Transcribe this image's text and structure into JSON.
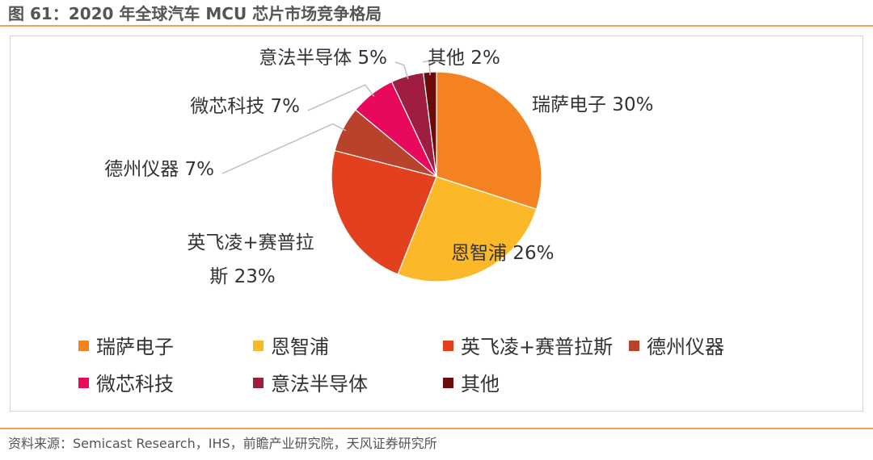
{
  "figure": {
    "title": "图 61：2020 年全球汽车 MCU 芯片市场竞争格局",
    "source": "资料来源：Semicast Research，IHS，前瞻产业研究院，天风证券研究所"
  },
  "chart_data": {
    "type": "pie",
    "categories": [
      "瑞萨电子",
      "恩智浦",
      "英飞凌+赛普拉斯",
      "德州仪器",
      "微芯科技",
      "意法半导体",
      "其他"
    ],
    "values": [
      30,
      26,
      23,
      7,
      7,
      5,
      2
    ],
    "value_unit": "%",
    "data_labels": [
      "瑞萨电子 30%",
      "恩智浦 26%",
      "英飞凌+赛普拉斯 23%",
      "德州仪器 7%",
      "微芯科技 7%",
      "意法半导体 5%",
      "其他 2%"
    ],
    "colors": [
      "#f58220",
      "#fbb829",
      "#e2401f",
      "#b8422b",
      "#e8095d",
      "#a01d42",
      "#6b0c0c"
    ],
    "start_angle_deg": 0,
    "direction": "clockwise",
    "legend_position": "bottom"
  }
}
